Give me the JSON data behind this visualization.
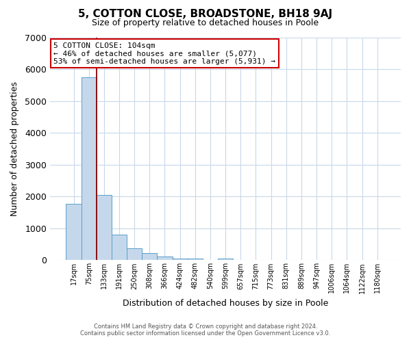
{
  "title": "5, COTTON CLOSE, BROADSTONE, BH18 9AJ",
  "subtitle": "Size of property relative to detached houses in Poole",
  "xlabel": "Distribution of detached houses by size in Poole",
  "ylabel": "Number of detached properties",
  "bar_labels": [
    "17sqm",
    "75sqm",
    "133sqm",
    "191sqm",
    "250sqm",
    "308sqm",
    "366sqm",
    "424sqm",
    "482sqm",
    "540sqm",
    "599sqm",
    "657sqm",
    "715sqm",
    "773sqm",
    "831sqm",
    "889sqm",
    "947sqm",
    "1006sqm",
    "1064sqm",
    "1122sqm",
    "1180sqm"
  ],
  "bar_values": [
    1780,
    5750,
    2060,
    800,
    365,
    230,
    120,
    55,
    55,
    0,
    55,
    0,
    0,
    0,
    0,
    0,
    0,
    0,
    0,
    0,
    0
  ],
  "bar_color": "#c5d8eb",
  "bar_edge_color": "#5a9ec9",
  "background_color": "#ffffff",
  "grid_color": "#c8d8e8",
  "ylim": [
    0,
    7000
  ],
  "yticks": [
    0,
    1000,
    2000,
    3000,
    4000,
    5000,
    6000,
    7000
  ],
  "property_line_color": "#8b0000",
  "annotation_title": "5 COTTON CLOSE: 104sqm",
  "annotation_line1": "← 46% of detached houses are smaller (5,077)",
  "annotation_line2": "53% of semi-detached houses are larger (5,931) →",
  "annotation_box_color": "#ffffff",
  "annotation_box_edgecolor": "#cc0000",
  "footer_line1": "Contains HM Land Registry data © Crown copyright and database right 2024.",
  "footer_line2": "Contains public sector information licensed under the Open Government Licence v3.0."
}
